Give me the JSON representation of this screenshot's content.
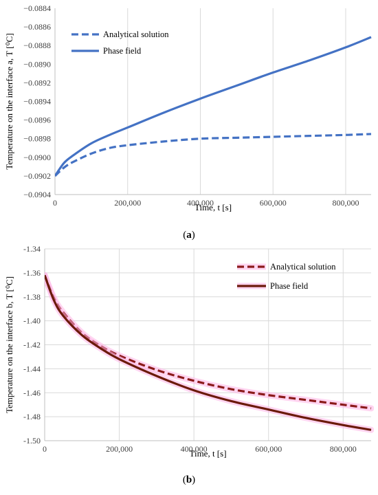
{
  "chart_data": [
    {
      "panel": "a",
      "type": "line",
      "caption": "(a)",
      "xlabel": "Time, t [s]",
      "ylabel": "Temperature on the interface a, T [⁰C]",
      "xlim": [
        0,
        870000
      ],
      "ylim": [
        -0.0904,
        -0.0884
      ],
      "x_ticks": [
        0,
        200000,
        400000,
        600000,
        800000
      ],
      "x_tick_labels": [
        "0",
        "200,000",
        "400,000",
        "600,000",
        "800,000"
      ],
      "y_ticks": [
        -0.0884,
        -0.0886,
        -0.0888,
        -0.089,
        -0.0892,
        -0.0894,
        -0.0896,
        -0.0898,
        -0.09,
        -0.0902,
        -0.0904
      ],
      "y_tick_labels": [
        "−0.0884",
        "−0.0886",
        "−0.0888",
        "−0.0890",
        "−0.0892",
        "−0.0894",
        "−0.0896",
        "−0.0898",
        "−0.0900",
        "−0.0902",
        "−0.0904"
      ],
      "grid": "vertical",
      "legend_position": "top-left",
      "series": [
        {
          "name": "Analytical solution",
          "style": "dashed",
          "color": "#4472c4",
          "x": [
            0,
            25000,
            50000,
            100000,
            150000,
            200000,
            300000,
            400000,
            500000,
            600000,
            700000,
            800000,
            870000
          ],
          "y": [
            -0.0902,
            -0.09011,
            -0.09005,
            -0.08996,
            -0.0899,
            -0.08987,
            -0.08983,
            -0.0898,
            -0.08979,
            -0.08978,
            -0.08977,
            -0.08976,
            -0.08975
          ]
        },
        {
          "name": "Phase field",
          "style": "solid",
          "color": "#4472c4",
          "x": [
            0,
            25000,
            50000,
            100000,
            150000,
            200000,
            300000,
            400000,
            500000,
            600000,
            700000,
            800000,
            870000
          ],
          "y": [
            -0.0902,
            -0.09006,
            -0.08998,
            -0.08985,
            -0.08976,
            -0.08968,
            -0.08952,
            -0.08937,
            -0.08923,
            -0.08909,
            -0.08896,
            -0.08882,
            -0.08871
          ]
        }
      ]
    },
    {
      "panel": "b",
      "type": "line",
      "caption": "(b)",
      "xlabel": "Time, t [s]",
      "ylabel": "Temperature on the interface b, T [⁰C]",
      "xlim": [
        0,
        875000
      ],
      "ylim": [
        -1.5,
        -1.34
      ],
      "x_ticks": [
        0,
        200000,
        400000,
        600000,
        800000
      ],
      "x_tick_labels": [
        "0",
        "200,000",
        "400,000",
        "600,000",
        "800,000"
      ],
      "y_ticks": [
        -1.34,
        -1.36,
        -1.38,
        -1.4,
        -1.42,
        -1.44,
        -1.46,
        -1.48,
        -1.5
      ],
      "y_tick_labels": [
        "-1.34",
        "-1.36",
        "-1.38",
        "-1.40",
        "-1.42",
        "-1.44",
        "-1.46",
        "-1.48",
        "-1.50"
      ],
      "grid": "both",
      "legend_position": "top-right",
      "series": [
        {
          "name": "Analytical solution",
          "style": "dashed",
          "color": "#8b1a1a",
          "glow": "#ffb3e6",
          "x": [
            0,
            25000,
            50000,
            100000,
            150000,
            200000,
            300000,
            400000,
            500000,
            600000,
            700000,
            800000,
            875000
          ],
          "y": [
            -1.362,
            -1.381,
            -1.393,
            -1.41,
            -1.421,
            -1.429,
            -1.441,
            -1.45,
            -1.457,
            -1.462,
            -1.466,
            -1.47,
            -1.473
          ]
        },
        {
          "name": "Phase field",
          "style": "solid",
          "color": "#6b1a0a",
          "glow": "#ffb3e6",
          "x": [
            0,
            25000,
            50000,
            100000,
            150000,
            200000,
            300000,
            400000,
            500000,
            600000,
            700000,
            800000,
            875000
          ],
          "y": [
            -1.362,
            -1.383,
            -1.396,
            -1.412,
            -1.423,
            -1.432,
            -1.446,
            -1.458,
            -1.467,
            -1.474,
            -1.481,
            -1.487,
            -1.491
          ]
        }
      ]
    }
  ]
}
